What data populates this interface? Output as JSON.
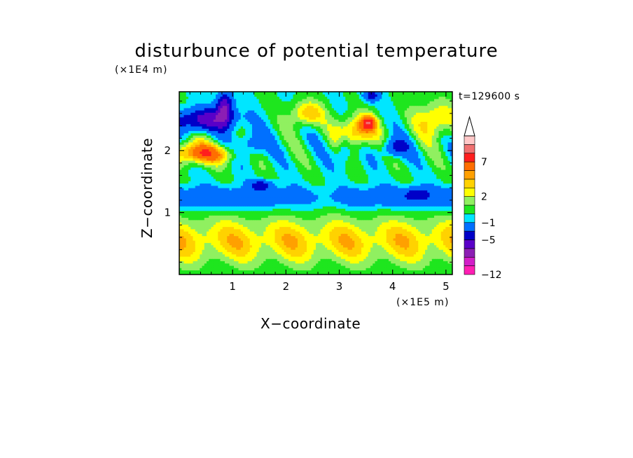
{
  "chart_data": {
    "type": "heatmap",
    "title": "disturbunce of potential temperature",
    "xlabel": "X−coordinate",
    "ylabel": "Z−coordinate",
    "x_unit": "(×1E5 m)",
    "y_unit": "(×1E4 m)",
    "time_label": "t=129600 s",
    "xlim": [
      0,
      5.12
    ],
    "ylim": [
      0,
      2.95
    ],
    "x_ticks": [
      1,
      2,
      3,
      4,
      5
    ],
    "y_ticks": [
      1,
      2
    ],
    "x_tick_labels": [
      "1",
      "2",
      "3",
      "4",
      "5"
    ],
    "y_tick_labels": [
      "1",
      "2"
    ],
    "colorbar": {
      "levels": [
        -12,
        -11,
        -9,
        -7,
        -5,
        -3,
        -1,
        0,
        1,
        2,
        3,
        4,
        5,
        7,
        9,
        11
      ],
      "labeled_levels": [
        {
          "value": 7,
          "label": "7"
        },
        {
          "value": 2,
          "label": "2"
        },
        {
          "value": -1,
          "label": "−1"
        },
        {
          "value": -5,
          "label": "−5"
        },
        {
          "value": -12,
          "label": "−12"
        }
      ],
      "colors": [
        "#ff1eb4",
        "#d21ec8",
        "#8c1eb4",
        "#5a00c8",
        "#0000c8",
        "#0070ff",
        "#00e6ff",
        "#1ee61e",
        "#90f060",
        "#ffff00",
        "#ffd200",
        "#ffa000",
        "#ff6e00",
        "#ff1e1e",
        "#f07070",
        "#ffc8c8"
      ],
      "extend": "max"
    }
  }
}
